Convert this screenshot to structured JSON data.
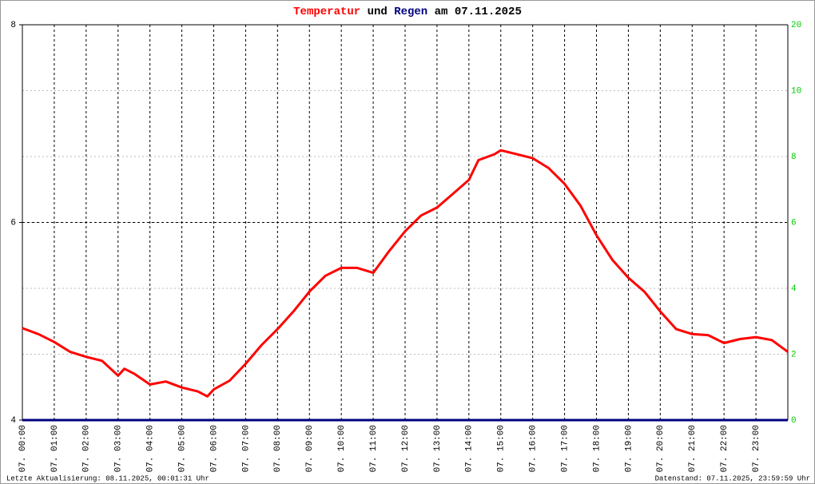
{
  "chart_data": {
    "type": "line",
    "title_parts": [
      "Temperatur",
      "und",
      "Regen",
      "am 07.11.2025"
    ],
    "footer_left": "Letzte Aktualisierung: 08.11.2025, 00:01:31 Uhr",
    "footer_right": "Datenstand: 07.11.2025, 23:59:59 Uhr",
    "xlim": [
      0,
      24
    ],
    "xticks": [
      {
        "value": 0,
        "label": "07. 00:00"
      },
      {
        "value": 1,
        "label": "07. 01:00"
      },
      {
        "value": 2,
        "label": "07. 02:00"
      },
      {
        "value": 3,
        "label": "07. 03:00"
      },
      {
        "value": 4,
        "label": "07. 04:00"
      },
      {
        "value": 5,
        "label": "07. 05:00"
      },
      {
        "value": 6,
        "label": "07. 06:00"
      },
      {
        "value": 7,
        "label": "07. 07:00"
      },
      {
        "value": 8,
        "label": "07. 08:00"
      },
      {
        "value": 9,
        "label": "07. 09:00"
      },
      {
        "value": 10,
        "label": "07. 10:00"
      },
      {
        "value": 11,
        "label": "07. 11:00"
      },
      {
        "value": 12,
        "label": "07. 12:00"
      },
      {
        "value": 13,
        "label": "07. 13:00"
      },
      {
        "value": 14,
        "label": "07. 14:00"
      },
      {
        "value": 15,
        "label": "07. 15:00"
      },
      {
        "value": 16,
        "label": "07. 16:00"
      },
      {
        "value": 17,
        "label": "07. 17:00"
      },
      {
        "value": 18,
        "label": "07. 18:00"
      },
      {
        "value": 19,
        "label": "07. 19:00"
      },
      {
        "value": 20,
        "label": "07. 20:00"
      },
      {
        "value": 21,
        "label": "07. 21:00"
      },
      {
        "value": 22,
        "label": "07. 22:00"
      },
      {
        "value": 23,
        "label": "07. 23:00"
      }
    ],
    "ylim": [
      4,
      8
    ],
    "yticks": [
      4,
      6,
      8
    ],
    "y2lim": [
      0,
      12
    ],
    "y2ticks": [
      0,
      2,
      4,
      6,
      8,
      10
    ],
    "y2_top_label": "20",
    "grid": true,
    "series": [
      {
        "name": "Temperatur",
        "color": "#ff0000",
        "x": [
          0,
          0.5,
          1,
          1.5,
          2,
          2.5,
          3,
          3.2,
          3.5,
          4,
          4.5,
          5,
          5.5,
          5.8,
          6,
          6.5,
          7,
          7.5,
          8,
          8.5,
          9,
          9.5,
          10,
          10.5,
          11,
          11.5,
          12,
          12.5,
          13,
          13.5,
          14,
          14.3,
          14.8,
          15,
          15.5,
          16,
          16.5,
          17,
          17.5,
          18,
          18.5,
          19,
          19.5,
          20,
          20.5,
          21,
          21.5,
          22,
          22.5,
          23,
          23.5,
          24
        ],
        "values": [
          4.93,
          4.87,
          4.79,
          4.69,
          4.64,
          4.6,
          4.45,
          4.52,
          4.47,
          4.36,
          4.39,
          4.33,
          4.29,
          4.24,
          4.31,
          4.4,
          4.57,
          4.76,
          4.92,
          5.1,
          5.3,
          5.46,
          5.54,
          5.54,
          5.49,
          5.71,
          5.91,
          6.07,
          6.15,
          6.29,
          6.43,
          6.63,
          6.69,
          6.73,
          6.69,
          6.65,
          6.55,
          6.39,
          6.17,
          5.87,
          5.62,
          5.44,
          5.3,
          5.1,
          4.92,
          4.87,
          4.86,
          4.78,
          4.82,
          4.84,
          4.81,
          4.69
        ]
      },
      {
        "name": "Regen",
        "color": "#000080",
        "axis": "y2",
        "x": [
          0,
          24
        ],
        "values": [
          0,
          0
        ]
      }
    ]
  }
}
